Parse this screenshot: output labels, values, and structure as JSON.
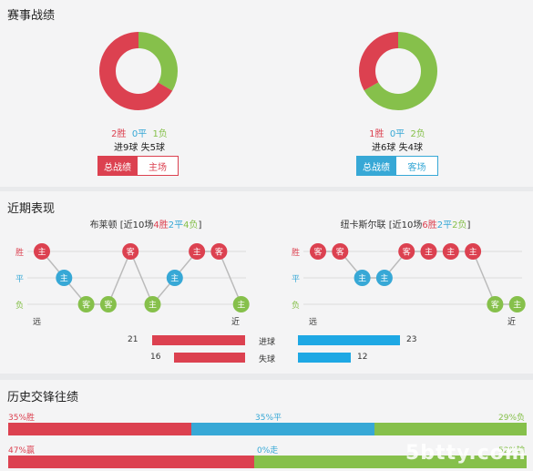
{
  "section1": {
    "title": "赛事战绩",
    "home": {
      "win": "2胜",
      "draw": "0平",
      "loss": "1负",
      "goals": "进9球 失5球",
      "tab_active": "总战绩",
      "tab_other": "主场",
      "donut": {
        "win": 2,
        "draw": 0,
        "loss": 1
      }
    },
    "away": {
      "win": "1胜",
      "draw": "0平",
      "loss": "2负",
      "goals": "进6球 失4球",
      "tab_active": "总战绩",
      "tab_other": "客场",
      "donut": {
        "win": 1,
        "draw": 0,
        "loss": 2
      }
    }
  },
  "section2": {
    "title": "近期表现",
    "home": {
      "team": "布莱顿",
      "summary_prefix": "[近10场",
      "w": "4胜",
      "d": "2平",
      "l": "4负",
      "summary_suffix": "]",
      "results": [
        {
          "r": "W",
          "tag": "主"
        },
        {
          "r": "D",
          "tag": "主"
        },
        {
          "r": "L",
          "tag": "客"
        },
        {
          "r": "L",
          "tag": "客"
        },
        {
          "r": "W",
          "tag": "客"
        },
        {
          "r": "L",
          "tag": "主"
        },
        {
          "r": "D",
          "tag": "主"
        },
        {
          "r": "W",
          "tag": "主"
        },
        {
          "r": "W",
          "tag": "客"
        },
        {
          "r": "L",
          "tag": "主"
        }
      ]
    },
    "away": {
      "team": "纽卡斯尔联",
      "summary_prefix": "[近10场",
      "w": "6胜",
      "d": "2平",
      "l": "2负",
      "summary_suffix": "]",
      "results": [
        {
          "r": "W",
          "tag": "客"
        },
        {
          "r": "W",
          "tag": "客"
        },
        {
          "r": "D",
          "tag": "主"
        },
        {
          "r": "D",
          "tag": "主"
        },
        {
          "r": "W",
          "tag": "客"
        },
        {
          "r": "W",
          "tag": "主"
        },
        {
          "r": "W",
          "tag": "主"
        },
        {
          "r": "W",
          "tag": "主"
        },
        {
          "r": "L",
          "tag": "客"
        },
        {
          "r": "L",
          "tag": "主"
        }
      ]
    },
    "axis": {
      "win": "胜",
      "draw": "平",
      "loss": "负",
      "far": "远",
      "near": "近"
    },
    "goals_for": {
      "label": "进球",
      "home": 21,
      "away": 23
    },
    "goals_against": {
      "label": "失球",
      "home": 16,
      "away": 12
    },
    "max_goals": 23
  },
  "section3": {
    "title": "历史交锋往绩",
    "row1": {
      "left": "35%胜",
      "mid": "35%平",
      "right": "29%负",
      "a": 35,
      "b": 35,
      "c": 29
    },
    "row2": {
      "left": "47%赢",
      "mid": "0%走",
      "right": "52%输",
      "a": 47,
      "b": 0,
      "c": 52
    }
  },
  "watermark": "5btty.com",
  "colors": {
    "red": "#dc4150",
    "blue": "#37a8d6",
    "green": "#86c04b",
    "sky": "#1ea8e4"
  }
}
